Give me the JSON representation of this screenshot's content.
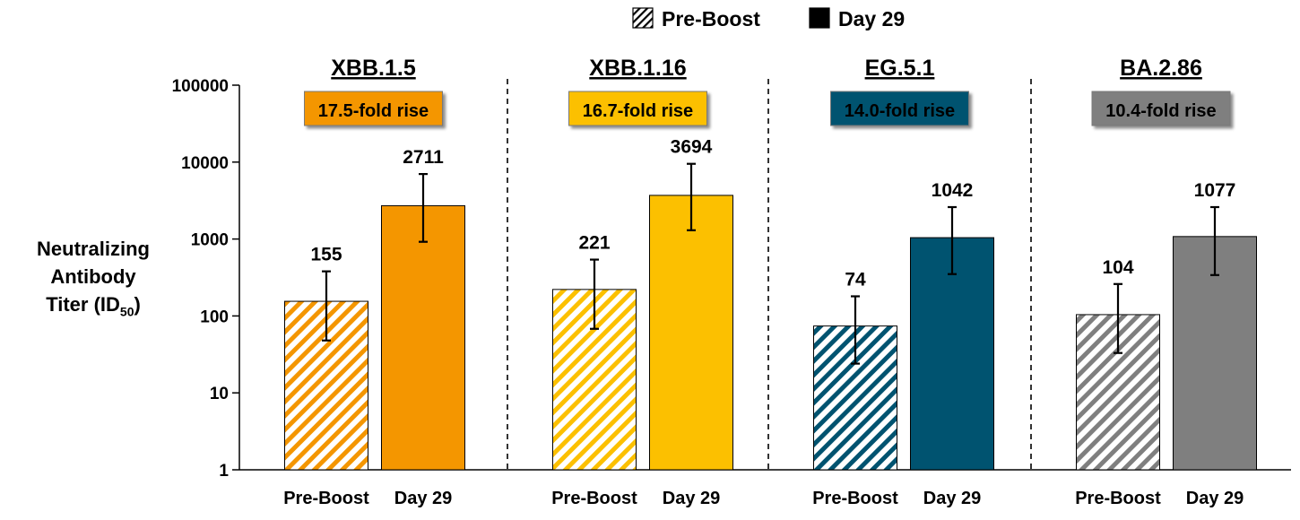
{
  "chart_data": {
    "type": "bar",
    "yscale": "log",
    "ylim": [
      1,
      100000
    ],
    "ylabel": "Neutralizing Antibody Titer (ID50)",
    "ylabel_lines": [
      "Neutralizing",
      "Antibody",
      "Titer (ID"
    ],
    "ylabel_sub": "50",
    "ylabel_close": ")",
    "yticks": [
      1,
      10,
      100,
      1000,
      10000,
      100000
    ],
    "ytick_labels": [
      "1",
      "10",
      "100",
      "1000",
      "10000",
      "100000"
    ],
    "legend": [
      {
        "name": "Pre-Boost",
        "pattern": "hatched"
      },
      {
        "name": "Day 29",
        "pattern": "solid"
      }
    ],
    "legend_position": "top-right",
    "categories": [
      "Pre-Boost",
      "Day 29"
    ],
    "groups": [
      {
        "name": "XBB.1.5",
        "fold": "17.5-fold rise",
        "color": "#F49600",
        "values": [
          155,
          2711
        ],
        "labels": [
          "155",
          "2711"
        ],
        "err_low": [
          48,
          920
        ],
        "err_high": [
          380,
          7000
        ]
      },
      {
        "name": "XBB.1.16",
        "fold": "16.7-fold rise",
        "color": "#FCC000",
        "values": [
          221,
          3694
        ],
        "labels": [
          "221",
          "3694"
        ],
        "err_low": [
          68,
          1300
        ],
        "err_high": [
          540,
          9500
        ]
      },
      {
        "name": "EG.5.1",
        "fold": "14.0-fold rise",
        "color": "#005370",
        "values": [
          74,
          1042
        ],
        "labels": [
          "74",
          "1042"
        ],
        "err_low": [
          24,
          350
        ],
        "err_high": [
          180,
          2600
        ]
      },
      {
        "name": "BA.2.86",
        "fold": "10.4-fold rise",
        "color": "#7F7F7F",
        "values": [
          104,
          1077
        ],
        "labels": [
          "104",
          "1077"
        ],
        "err_low": [
          33,
          340
        ],
        "err_high": [
          260,
          2600
        ]
      }
    ]
  }
}
